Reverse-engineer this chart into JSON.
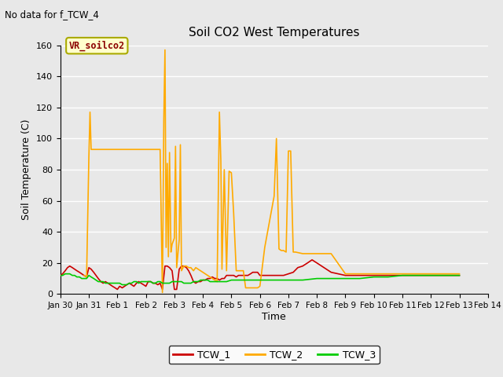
{
  "title": "Soil CO2 West Temperatures",
  "xlabel": "Time",
  "ylabel": "Soil Temperature (C)",
  "no_data_text": "No data for f_TCW_4",
  "annotation_text": "VR_soilco2",
  "ylim": [
    0,
    160
  ],
  "background_color": "#e8e8e8",
  "grid_color": "white",
  "fig_color": "#e8e8e8",
  "tcw1_color": "#cc0000",
  "tcw2_color": "#ffaa00",
  "tcw3_color": "#00cc00",
  "x_tick_labels": [
    "Jan 30",
    "Jan 31",
    "Feb 1",
    "Feb 2",
    "Feb 3",
    "Feb 4",
    "Feb 5",
    "Feb 6",
    "Feb 7",
    "Feb 8",
    "Feb 9",
    "Feb 10",
    "Feb 11",
    "Feb 12",
    "Feb 13",
    "Feb 14"
  ],
  "TCW_1": {
    "t": [
      0.0,
      0.08,
      0.17,
      0.25,
      0.33,
      0.42,
      0.5,
      0.58,
      0.67,
      0.75,
      0.83,
      0.92,
      1.0,
      1.08,
      1.17,
      1.25,
      1.33,
      1.42,
      1.5,
      1.58,
      1.67,
      1.75,
      1.83,
      1.92,
      2.0,
      2.08,
      2.17,
      2.25,
      2.33,
      2.42,
      2.5,
      2.58,
      2.67,
      2.75,
      2.83,
      2.92,
      3.0,
      3.08,
      3.17,
      3.25,
      3.33,
      3.42,
      3.5,
      3.58,
      3.67,
      3.75,
      3.83,
      3.92,
      4.0,
      4.08,
      4.17,
      4.25,
      4.33,
      4.42,
      4.5,
      4.58,
      4.67,
      4.75,
      4.83,
      4.92,
      5.0,
      5.08,
      5.17,
      5.25,
      5.33,
      5.42,
      5.5,
      5.58,
      5.67,
      5.75,
      5.83,
      5.92,
      6.0,
      6.08,
      6.17,
      6.25,
      6.33,
      6.42,
      6.5,
      6.58,
      6.67,
      6.75,
      6.83,
      6.92,
      7.0,
      7.08,
      7.17,
      7.25,
      7.33,
      7.5,
      7.67,
      7.83,
      8.0,
      8.17,
      8.33,
      8.5,
      8.67,
      8.83,
      9.0,
      9.5,
      10.0,
      10.5,
      11.0,
      11.5,
      12.0,
      12.5,
      13.0,
      13.5,
      14.0
    ],
    "v": [
      12,
      13,
      15,
      17,
      18,
      17,
      16,
      15,
      14,
      13,
      12,
      11,
      17,
      16,
      14,
      12,
      10,
      8,
      7,
      8,
      7,
      6,
      5,
      4,
      3,
      5,
      4,
      5,
      6,
      7,
      6,
      5,
      7,
      8,
      7,
      6,
      5,
      8,
      8,
      7,
      7,
      6,
      7,
      3,
      18,
      18,
      17,
      15,
      3,
      3,
      16,
      18,
      18,
      17,
      15,
      12,
      8,
      7,
      8,
      8,
      9,
      9,
      10,
      10,
      11,
      10,
      10,
      9,
      10,
      10,
      12,
      12,
      12,
      12,
      11,
      12,
      12,
      12,
      12,
      12,
      13,
      14,
      14,
      14,
      12,
      12,
      12,
      12,
      12,
      12,
      12,
      12,
      13,
      14,
      17,
      18,
      20,
      22,
      20,
      14,
      12,
      12,
      12,
      12,
      12,
      12,
      12,
      12,
      12
    ]
  },
  "TCW_2": {
    "t": [
      0.83,
      0.92,
      1.0,
      1.04,
      1.08,
      1.25,
      1.33,
      1.42,
      1.5,
      1.58,
      1.67,
      1.75,
      1.83,
      2.5,
      2.58,
      2.92,
      3.0,
      3.08,
      3.5,
      3.58,
      3.63,
      3.67,
      3.71,
      3.75,
      3.79,
      3.83,
      3.88,
      3.92,
      3.96,
      4.0,
      4.04,
      4.08,
      4.17,
      4.21,
      4.25,
      4.33,
      4.42,
      4.5,
      4.58,
      4.67,
      4.75,
      5.5,
      5.58,
      5.63,
      5.67,
      5.75,
      5.83,
      5.92,
      6.0,
      6.08,
      6.17,
      6.25,
      6.33,
      6.42,
      6.5,
      6.58,
      6.67,
      6.75,
      6.83,
      6.92,
      7.0,
      7.17,
      7.5,
      7.58,
      7.67,
      7.75,
      7.83,
      7.92,
      8.0,
      8.08,
      8.17,
      8.25,
      8.5,
      8.67,
      9.0,
      9.5,
      10.0,
      10.5,
      11.0,
      11.5,
      12.0,
      12.5,
      13.0,
      13.5,
      14.0
    ],
    "v": [
      12,
      11,
      88,
      117,
      93,
      93,
      93,
      93,
      93,
      93,
      93,
      93,
      93,
      93,
      93,
      93,
      93,
      93,
      93,
      1,
      113,
      157,
      30,
      84,
      24,
      91,
      27,
      32,
      34,
      36,
      95,
      17,
      35,
      96,
      15,
      18,
      18,
      17,
      17,
      15,
      17,
      8,
      117,
      86,
      16,
      80,
      15,
      79,
      78,
      52,
      15,
      15,
      15,
      15,
      4,
      4,
      4,
      4,
      4,
      4,
      5,
      30,
      63,
      100,
      29,
      28,
      28,
      27,
      92,
      92,
      27,
      27,
      26,
      26,
      26,
      26,
      13,
      13,
      13,
      13,
      13,
      13,
      13,
      13,
      13
    ]
  },
  "TCW_3": {
    "t": [
      0.0,
      0.08,
      0.17,
      0.25,
      0.33,
      0.42,
      0.5,
      0.58,
      0.67,
      0.75,
      0.83,
      0.92,
      1.0,
      1.08,
      1.17,
      1.25,
      1.33,
      1.42,
      1.5,
      1.58,
      1.67,
      1.75,
      1.83,
      1.92,
      2.0,
      2.08,
      2.17,
      2.25,
      2.33,
      2.42,
      2.5,
      2.58,
      2.67,
      2.75,
      2.83,
      2.92,
      3.0,
      3.08,
      3.17,
      3.25,
      3.33,
      3.42,
      3.5,
      3.58,
      3.67,
      3.75,
      3.83,
      3.92,
      4.0,
      4.08,
      4.17,
      4.25,
      4.33,
      4.42,
      4.5,
      4.58,
      4.67,
      4.75,
      4.83,
      4.92,
      5.0,
      5.08,
      5.17,
      5.25,
      5.33,
      5.5,
      5.67,
      5.83,
      6.0,
      6.5,
      7.0,
      7.5,
      8.0,
      8.5,
      9.0,
      9.5,
      10.0,
      10.5,
      11.0,
      11.5,
      12.0,
      12.5,
      13.0,
      13.5,
      14.0
    ],
    "v": [
      12,
      12,
      13,
      13,
      13,
      12,
      12,
      11,
      11,
      10,
      10,
      10,
      12,
      11,
      10,
      9,
      8,
      8,
      8,
      7,
      7,
      7,
      7,
      7,
      7,
      7,
      6,
      6,
      6,
      7,
      7,
      8,
      8,
      7,
      8,
      8,
      8,
      8,
      8,
      7,
      7,
      8,
      8,
      7,
      7,
      7,
      7,
      8,
      8,
      8,
      8,
      8,
      7,
      7,
      7,
      7,
      8,
      8,
      8,
      9,
      9,
      9,
      9,
      8,
      8,
      8,
      8,
      8,
      9,
      9,
      9,
      9,
      9,
      9,
      10,
      10,
      10,
      10,
      11,
      11,
      12,
      12,
      12,
      12,
      12
    ]
  }
}
